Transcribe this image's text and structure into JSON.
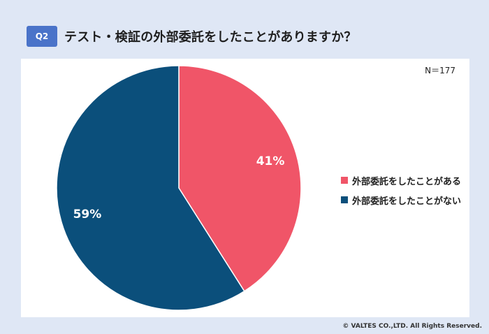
{
  "header": {
    "badge": "Q2",
    "question": "テスト・検証の外部委託をしたことがありますか？"
  },
  "sample_size": "N＝177",
  "copyright": "© VALTES CO.,LTD. All Rights Reserved.",
  "chart_data": {
    "type": "pie",
    "title": "テスト・検証の外部委託をしたことがありますか？",
    "categories": [
      "外部委託をしたことがある",
      "外部委託をしたことがない"
    ],
    "values": [
      41,
      59
    ],
    "labels": [
      "41%",
      "59%"
    ],
    "colors": [
      "#f05568",
      "#0b4f7b"
    ],
    "start_angle_deg": 0,
    "direction": "clockwise",
    "legend_position": "right"
  }
}
